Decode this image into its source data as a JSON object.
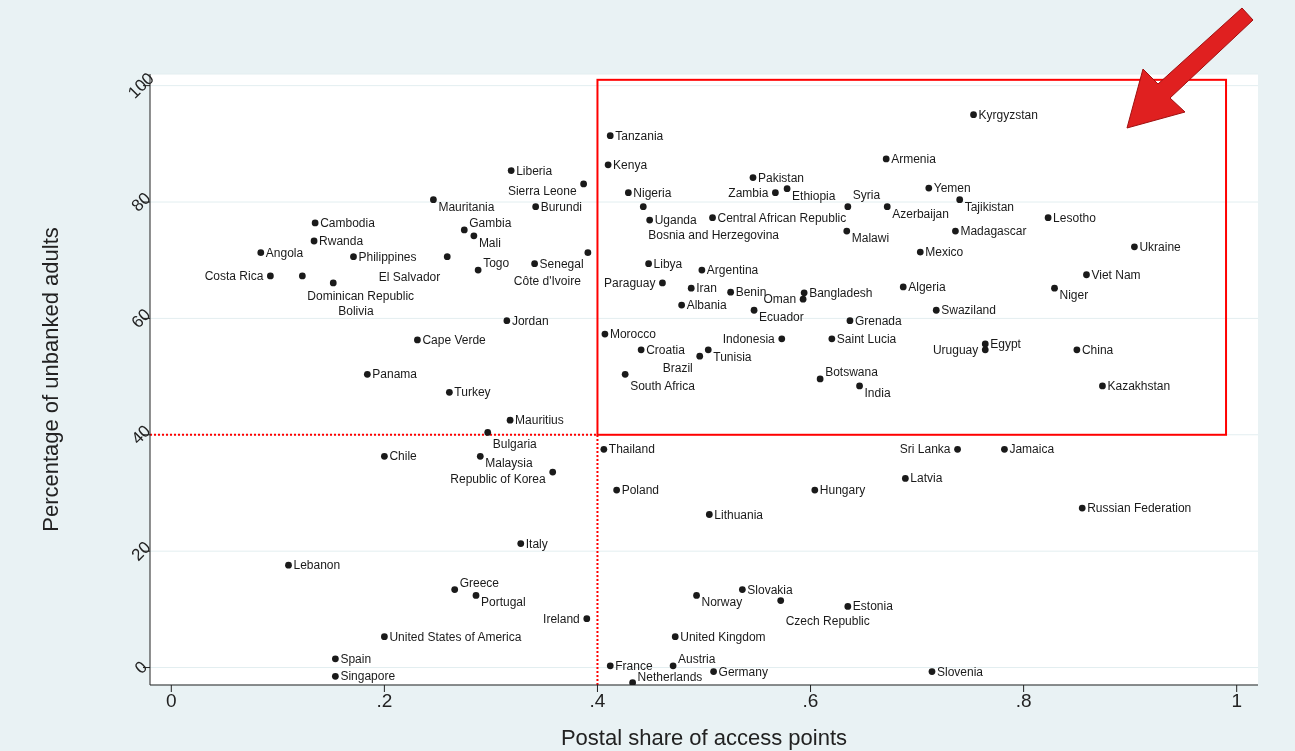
{
  "chart_data": {
    "type": "scatter",
    "xlabel": "Postal share of access points",
    "ylabel": "Percentage of unbanked adults",
    "xlim": [
      -0.02,
      1.02
    ],
    "ylim": [
      -3,
      102
    ],
    "xticks": [
      0,
      {
        "value": 0.2,
        "label": ".2"
      },
      {
        "value": 0.4,
        "label": ".4"
      },
      {
        "value": 0.6,
        "label": ".6"
      },
      {
        "value": 0.8,
        "label": ".8"
      },
      1
    ],
    "yticks": [
      0,
      20,
      40,
      60,
      80,
      100
    ],
    "grid": "y",
    "legend": false,
    "marker": "circle",
    "ref_lines": [
      {
        "axis": "x",
        "value": 0.4,
        "color": "#ff0000",
        "line_style": "dotted"
      },
      {
        "axis": "y",
        "value": 40,
        "color": "#ff0000",
        "line_style": "dotted"
      }
    ],
    "series": [
      {
        "color": "#1a1a1a",
        "x": [
          0.753,
          0.412,
          0.671,
          0.319,
          0.41,
          0.387,
          0.546,
          0.578,
          0.567,
          0.429,
          0.711,
          0.74,
          0.246,
          0.342,
          0.443,
          0.635,
          0.672,
          0.823,
          0.508,
          0.449,
          0.135,
          0.634,
          0.736,
          0.275,
          0.284,
          0.134,
          0.904,
          0.084,
          0.391,
          0.703,
          0.171,
          0.259,
          0.341,
          0.448,
          0.288,
          0.498,
          0.859,
          0.093,
          0.123,
          0.152,
          0.461,
          0.488,
          0.829,
          0.687,
          0.525,
          0.594,
          0.593,
          0.479,
          0.547,
          0.718,
          0.315,
          0.637,
          0.407,
          0.231,
          0.573,
          0.62,
          0.764,
          0.764,
          0.441,
          0.504,
          0.496,
          0.85,
          0.184,
          0.426,
          0.609,
          0.646,
          0.874,
          0.261,
          0.318,
          0.297,
          0.406,
          0.738,
          0.782,
          0.2,
          0.29,
          0.358,
          0.689,
          0.418,
          0.604,
          0.505,
          0.855,
          0.328,
          0.11,
          0.266,
          0.286,
          0.536,
          0.493,
          0.572,
          0.635,
          0.39,
          0.2,
          0.473,
          0.154,
          0.412,
          0.471,
          0.509,
          0.714,
          0.154,
          0.433
        ],
        "values": [
          95.0,
          91.4,
          87.4,
          85.4,
          86.4,
          83.1,
          84.2,
          82.3,
          81.6,
          81.6,
          82.4,
          80.4,
          80.4,
          79.2,
          79.2,
          79.2,
          79.2,
          77.3,
          77.3,
          76.9,
          76.4,
          75.0,
          75.0,
          75.2,
          74.2,
          73.3,
          72.3,
          71.3,
          71.3,
          71.4,
          70.6,
          70.6,
          69.4,
          69.4,
          68.3,
          68.3,
          67.5,
          67.3,
          67.3,
          66.1,
          66.1,
          65.2,
          65.2,
          65.4,
          64.5,
          64.4,
          63.3,
          62.3,
          61.4,
          61.4,
          59.6,
          59.6,
          57.3,
          56.3,
          56.5,
          56.5,
          55.6,
          54.6,
          54.6,
          54.6,
          53.5,
          54.6,
          50.4,
          50.4,
          49.6,
          48.4,
          48.4,
          47.3,
          42.5,
          40.4,
          37.5,
          37.5,
          37.5,
          36.3,
          36.3,
          33.6,
          32.5,
          30.5,
          30.5,
          26.3,
          27.4,
          21.3,
          17.6,
          13.4,
          12.4,
          13.4,
          12.4,
          11.5,
          10.5,
          8.4,
          5.3,
          5.3,
          1.5,
          0.3,
          0.3,
          -0.7,
          -0.7,
          -1.5,
          -2.6
        ],
        "value_labels": [
          "Kyrgyzstan",
          "Tanzania",
          "Armenia",
          "Liberia",
          "Kenya",
          "Sierra Leone",
          "Pakistan",
          "Ethiopia",
          "Zambia",
          "Nigeria",
          "Yemen",
          "Tajikistan",
          "Mauritania",
          "Burundi",
          "Bosnia and Herzegovina",
          "Syria",
          "Azerbaijan",
          "Lesotho",
          "Central African Republic",
          "Uganda",
          "Cambodia",
          "Malawi",
          "Madagascar",
          "Gambia",
          "Mali",
          "Rwanda",
          "Ukraine",
          "Angola",
          "Côte d'Ivoire",
          "Mexico",
          "Philippines",
          "El Salvador",
          "Senegal",
          "Libya",
          "Togo",
          "Argentina",
          "Viet Nam",
          "Costa Rica",
          "Dominican Republic",
          "Bolivia",
          "Paraguay",
          "Iran",
          "Niger",
          "Algeria",
          "Benin",
          "Bangladesh",
          "Oman",
          "Albania",
          "Ecuador",
          "Swaziland",
          "Jordan",
          "Grenada",
          "Morocco",
          "Cape Verde",
          "Indonesia",
          "Saint Lucia",
          "Egypt",
          "Uruguay",
          "Croatia",
          "Tunisia",
          "Brazil",
          "China",
          "Panama",
          "South Africa",
          "Botswana",
          "India",
          "Kazakhstan",
          "Turkey",
          "Mauritius",
          "Bulgaria",
          "Thailand",
          "Sri Lanka",
          "Jamaica",
          "Chile",
          "Malaysia",
          "Republic of Korea",
          "Latvia",
          "Poland",
          "Hungary",
          "Lithuania",
          "Russian Federation",
          "Italy",
          "Lebanon",
          "Greece",
          "Portugal",
          "Slovakia",
          "Norway",
          "Czech Republic",
          "Estonia",
          "Ireland",
          "United States of America",
          "United Kingdom",
          "Spain",
          "France",
          "Austria",
          "Germany",
          "Slovenia",
          "Singapore",
          "Netherlands"
        ]
      }
    ]
  }
}
